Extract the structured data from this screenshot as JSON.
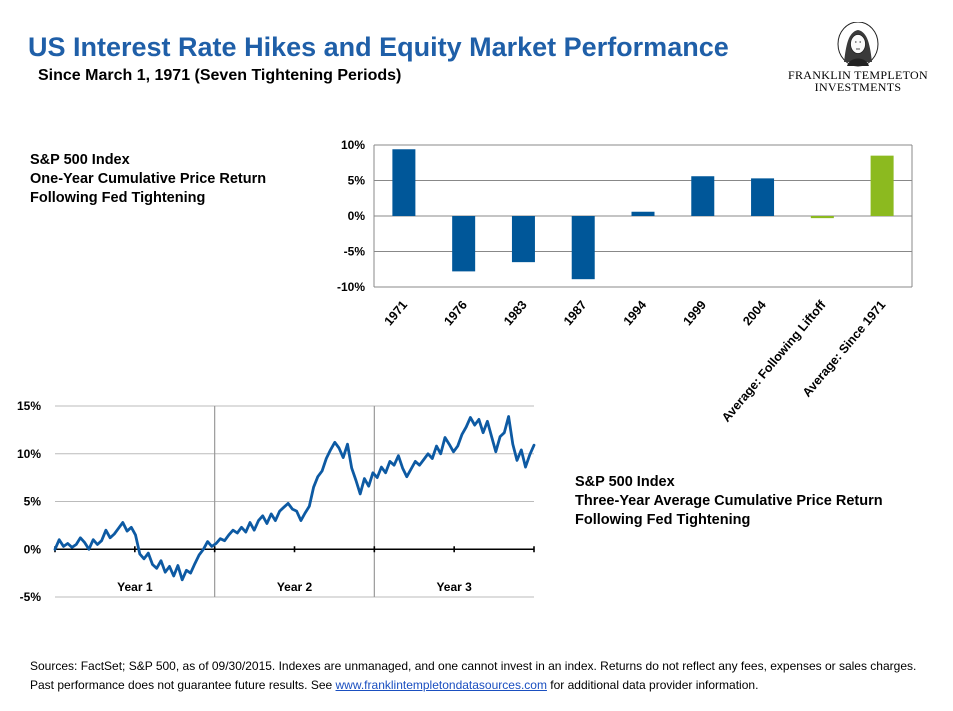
{
  "header": {
    "title": "US Interest Rate Hikes and Equity Market Performance",
    "subtitle": "Since March 1, 1971 (Seven Tightening Periods)"
  },
  "logo": {
    "line1": "FRANKLIN TEMPLETON",
    "line2": "INVESTMENTS",
    "icon": "franklin-portrait-icon"
  },
  "bar_description": {
    "line1": "S&P 500 Index",
    "line2": "One-Year Cumulative Price  Return",
    "line3": "Following Fed Tightening"
  },
  "line_description": {
    "line1": "S&P 500 Index",
    "line2": "Three-Year Average Cumulative Price  Return",
    "line3": "Following Fed Tightening"
  },
  "chart_data": [
    {
      "type": "bar",
      "categories": [
        "1971",
        "1976",
        "1983",
        "1987",
        "1994",
        "1999",
        "2004",
        "Average: Following Liftoff",
        "Average: Since 1971"
      ],
      "values": [
        9.4,
        -7.8,
        -6.5,
        -8.9,
        0.6,
        5.6,
        5.3,
        -0.3,
        8.5
      ],
      "colors": [
        "#005799",
        "#005799",
        "#005799",
        "#005799",
        "#005799",
        "#005799",
        "#005799",
        "#8cba1f",
        "#8cba1f"
      ],
      "y_ticks": [
        10,
        5,
        0,
        -5,
        -10
      ],
      "y_tick_labels": [
        "10%",
        "5%",
        "0%",
        "-5%",
        "-10%"
      ],
      "ylim": [
        -10,
        10
      ],
      "grid": true
    },
    {
      "type": "line",
      "line_color": "#0d5aa3",
      "periods": [
        "Year 1",
        "Year 2",
        "Year 3"
      ],
      "y_ticks": [
        15,
        10,
        5,
        0,
        -5
      ],
      "y_tick_labels": [
        "15%",
        "10%",
        "5%",
        "0%",
        "-5%"
      ],
      "ylim": [
        -5,
        15
      ],
      "grid": true,
      "series": [
        {
          "values": [
            0.0,
            1.0,
            0.3,
            0.6,
            0.2,
            0.5,
            1.2,
            0.7,
            0.0,
            1.0,
            0.5,
            0.9,
            2.0,
            1.2,
            1.6,
            2.2,
            2.8,
            1.9,
            2.3,
            1.5,
            -0.5,
            -1.0,
            -0.4,
            -1.6,
            -2.0,
            -1.2,
            -2.4,
            -1.8,
            -2.8,
            -1.7,
            -3.2,
            -2.2,
            -2.5,
            -1.5,
            -0.6,
            0.0,
            0.8,
            0.3,
            0.6,
            1.1,
            0.9,
            1.5,
            2.0,
            1.7,
            2.3,
            1.8,
            2.8,
            2.0,
            3.0,
            3.5,
            2.7,
            3.7,
            3.0,
            4.0,
            4.4,
            4.8,
            4.2,
            4.0,
            3.0,
            3.8,
            4.5,
            6.5,
            7.6,
            8.2,
            9.5,
            10.4,
            11.2,
            10.6,
            9.6,
            11.0,
            8.5,
            7.2,
            5.8,
            7.4,
            6.6,
            8.0,
            7.5,
            8.6,
            8.0,
            9.2,
            8.8,
            9.8,
            8.5,
            7.6,
            8.4,
            9.2,
            8.8,
            9.4,
            10.0,
            9.5,
            10.8,
            10.0,
            11.7,
            11.0,
            10.2,
            10.8,
            12.0,
            12.8,
            13.8,
            13.0,
            13.6,
            12.2,
            13.4,
            11.8,
            10.2,
            11.8,
            12.2,
            13.9,
            11.0,
            9.3,
            10.4,
            8.6,
            9.9,
            10.9
          ]
        }
      ]
    }
  ],
  "footer": {
    "text1": "Sources: FactSet; S&P 500, as of 09/30/2015.  Indexes are unmanaged, and one cannot invest in an  index. Returns do not reflect any fees, expenses or sales charges. Past performance does not guarantee future results. See ",
    "link": "www.franklintempletondatasources.com",
    "text2": " for additional data provider information."
  }
}
